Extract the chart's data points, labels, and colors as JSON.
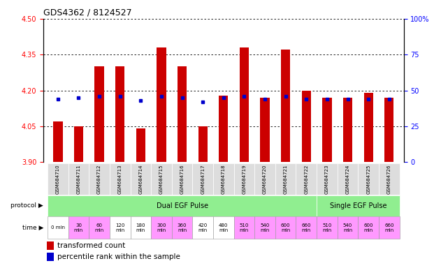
{
  "title": "GDS4362 / 8124527",
  "gsm_labels": [
    "GSM684710",
    "GSM684711",
    "GSM684712",
    "GSM684713",
    "GSM684714",
    "GSM684715",
    "GSM684716",
    "GSM684717",
    "GSM684718",
    "GSM684719",
    "GSM684720",
    "GSM684721",
    "GSM684722",
    "GSM684723",
    "GSM684724",
    "GSM684725",
    "GSM684726"
  ],
  "transformed_counts": [
    4.07,
    4.05,
    4.3,
    4.3,
    4.04,
    4.38,
    4.3,
    4.05,
    4.18,
    4.38,
    4.17,
    4.37,
    4.2,
    4.17,
    4.17,
    4.19,
    4.17
  ],
  "percentile_ranks": [
    44,
    45,
    46,
    46,
    43,
    46,
    45,
    42,
    45,
    46,
    44,
    46,
    44,
    44,
    44,
    44,
    44
  ],
  "y_min": 3.9,
  "y_max": 4.5,
  "y_ticks": [
    3.9,
    4.05,
    4.2,
    4.35,
    4.5
  ],
  "right_y_ticks": [
    0,
    25,
    50,
    75,
    100
  ],
  "time_labels": [
    "0 min",
    "30\nmin",
    "60\nmin",
    "120\nmin",
    "180\nmin",
    "300\nmin",
    "360\nmin",
    "420\nmin",
    "480\nmin",
    "510\nmin",
    "540\nmin",
    "600\nmin",
    "660\nmin",
    "510\nmin",
    "540\nmin",
    "600\nmin",
    "660\nmin"
  ],
  "time_colors": [
    "white",
    "pink",
    "pink",
    "white",
    "white",
    "pink",
    "pink",
    "white",
    "white",
    "pink",
    "pink",
    "pink",
    "pink",
    "pink",
    "pink",
    "pink",
    "pink"
  ],
  "protocol_dual_count": 13,
  "protocol_single_count": 4,
  "protocol_dual_label": "Dual EGF Pulse",
  "protocol_single_label": "Single EGF Pulse",
  "bar_color": "#CC0000",
  "blue_color": "#0000CC",
  "green_color": "#90EE90",
  "pink_color": "#FF99FF",
  "white_color": "#FFFFFF",
  "bar_bottom": 3.9,
  "legend_red": "transformed count",
  "legend_blue": "percentile rank within the sample"
}
